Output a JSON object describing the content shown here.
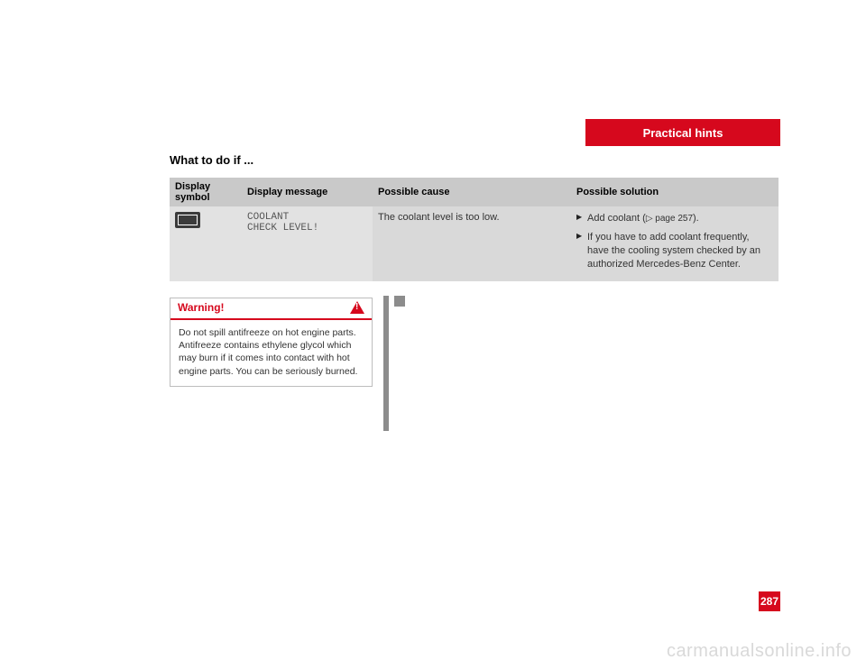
{
  "header": {
    "title": "Practical hints"
  },
  "section_title": "What to do if ...",
  "table": {
    "headers": {
      "symbol": "Display symbol",
      "message": "Display message",
      "cause": "Possible cause",
      "solution": "Possible solution"
    },
    "row": {
      "message_line1": "COOLANT",
      "message_line2": "CHECK LEVEL!",
      "cause": "The coolant level is too low.",
      "solutions": {
        "s1_pre": "Add coolant (",
        "s1_ref": "▷ page 257",
        "s1_post": ").",
        "s2": "If you have to add coolant frequently, have the cooling system checked by an authorized Mercedes-Benz Center."
      }
    }
  },
  "warning": {
    "title": "Warning!",
    "body": "Do not spill antifreeze on hot engine parts. Antifreeze contains ethylene glycol which may burn if it comes into contact with hot engine parts. You can be seriously burned."
  },
  "page_number": "287",
  "watermark": "carmanualsonline.info",
  "colors": {
    "accent_red": "#d6081d",
    "table_header_bg": "#c9c9c9",
    "table_cell_bg": "#d9d9d9",
    "table_cell_bg_light": "#e2e2e2",
    "rule_gray": "#8c8c8c",
    "watermark_gray": "#d9d9d9",
    "text": "#333333"
  }
}
